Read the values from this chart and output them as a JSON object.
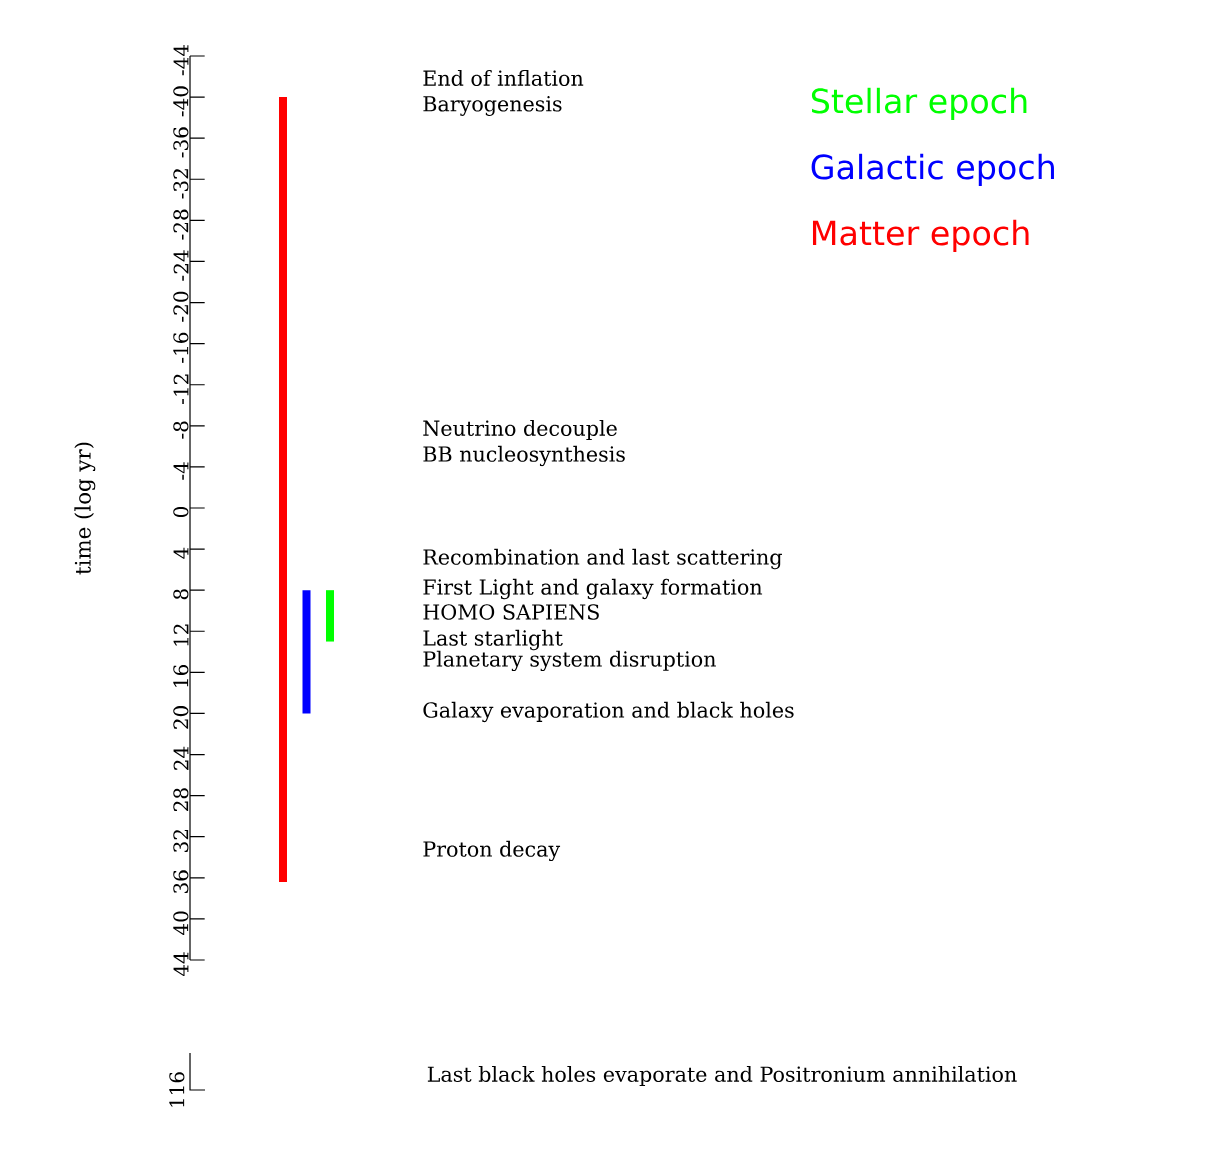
{
  "chart_data": [
    {
      "type": "bar",
      "ylabel": "time (log yr)",
      "categories": [
        null,
        null,
        null
      ],
      "values": [
        76.4,
        12,
        5
      ],
      "base": [
        -40,
        8,
        8
      ],
      "colors": [
        "#ff0000",
        "#0000ff",
        "#00ff00"
      ],
      "ylim": [
        44,
        -44
      ],
      "yticks": [
        -44,
        -40,
        -36,
        -32,
        -28,
        -24,
        -20,
        -16,
        -12,
        -8,
        -4,
        0,
        4,
        8,
        12,
        16,
        20,
        24,
        28,
        32,
        36,
        40,
        44
      ],
      "annotations": [
        "Stellar epoch",
        "Galactic epoch",
        "Matter epoch",
        "End of inflation",
        "Baryogenesis",
        "Neutrino decouple",
        "BB nucleosynthesis",
        "Recombination and last scattering",
        "First Light and galaxy formation",
        "HOMO SAPIENS",
        "Last starlight",
        "Planetary system disruption",
        "Galaxy evaporation and black holes",
        "Proton decay"
      ]
    },
    {
      "type": "other",
      "annotations": [
        "116",
        "Last black holes evaporate and Positronium annihilation"
      ]
    }
  ]
}
